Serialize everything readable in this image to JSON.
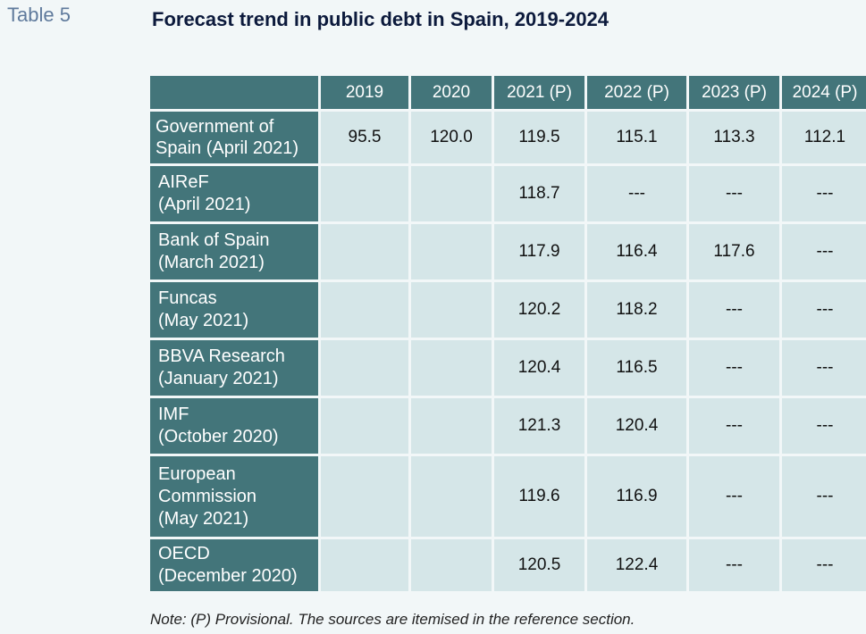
{
  "table_label": "Table 5",
  "title": "Forecast trend in public debt in Spain, 2019-2024",
  "columns": [
    "2019",
    "2020",
    "2021 (P)",
    "2022 (P)",
    "2023 (P)",
    "2024 (P)"
  ],
  "rows": [
    {
      "label": "Government of\nSpain (April 2021)",
      "values": [
        "95.5",
        "120.0",
        "119.5",
        "115.1",
        "113.3",
        "112.1"
      ]
    },
    {
      "label": "AIReF\n(April 2021)",
      "values": [
        "",
        "",
        "118.7",
        "---",
        "---",
        "---"
      ]
    },
    {
      "label": "Bank of Spain\n(March 2021)",
      "values": [
        "",
        "",
        "117.9",
        "116.4",
        "117.6",
        "---"
      ]
    },
    {
      "label": "Funcas\n(May 2021)",
      "values": [
        "",
        "",
        "120.2",
        "118.2",
        "---",
        "---"
      ]
    },
    {
      "label": "BBVA Research\n(January 2021)",
      "values": [
        "",
        "",
        "120.4",
        "116.5",
        "---",
        "---"
      ]
    },
    {
      "label": "IMF\n(October 2020)",
      "values": [
        "",
        "",
        "121.3",
        "120.4",
        "---",
        "---"
      ]
    },
    {
      "label": "European\nCommission\n(May 2021)",
      "values": [
        "",
        "",
        "119.6",
        "116.9",
        "---",
        "---"
      ]
    },
    {
      "label": "OECD\n(December 2020)",
      "values": [
        "",
        "",
        "120.5",
        "122.4",
        "---",
        "---"
      ]
    }
  ],
  "note": "Note: (P) Provisional. The sources are itemised in the reference section."
}
